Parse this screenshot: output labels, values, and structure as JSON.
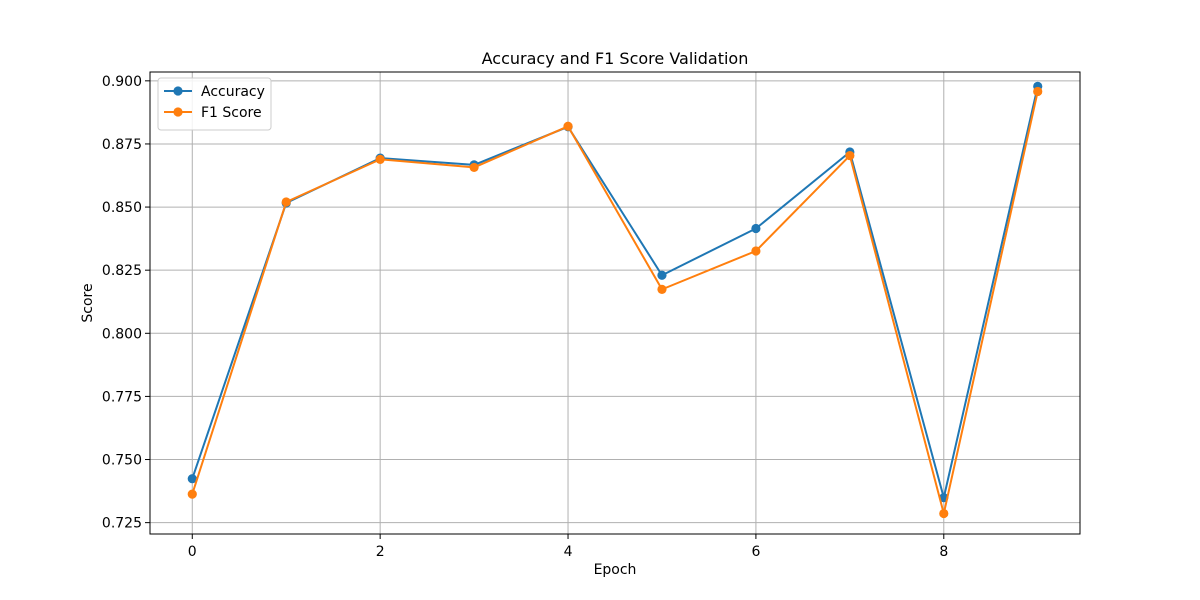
{
  "chart_data": {
    "type": "line",
    "title": "Accuracy and F1 Score Validation",
    "xlabel": "Epoch",
    "ylabel": "Score",
    "x": [
      0,
      1,
      2,
      3,
      4,
      5,
      6,
      7,
      8,
      9
    ],
    "xlim": [
      -0.45,
      9.45
    ],
    "ylim": [
      0.7205,
      0.9035
    ],
    "xticks": [
      0,
      2,
      4,
      6,
      8
    ],
    "yticks": [
      0.725,
      0.75,
      0.775,
      0.8,
      0.825,
      0.85,
      0.875,
      0.9
    ],
    "ytick_labels": [
      "0.725",
      "0.750",
      "0.775",
      "0.800",
      "0.825",
      "0.850",
      "0.875",
      "0.900"
    ],
    "grid": true,
    "legend_position": "top-left",
    "series": [
      {
        "name": "Accuracy",
        "color": "#1f77b4",
        "marker": "circle",
        "values": [
          0.7424,
          0.8516,
          0.8694,
          0.8667,
          0.8818,
          0.823,
          0.8415,
          0.8718,
          0.7349,
          0.8978
        ]
      },
      {
        "name": "F1 Score",
        "color": "#ff7f0e",
        "marker": "circle",
        "values": [
          0.7363,
          0.852,
          0.8689,
          0.8657,
          0.882,
          0.8174,
          0.8326,
          0.8704,
          0.7286,
          0.8958
        ]
      }
    ]
  }
}
